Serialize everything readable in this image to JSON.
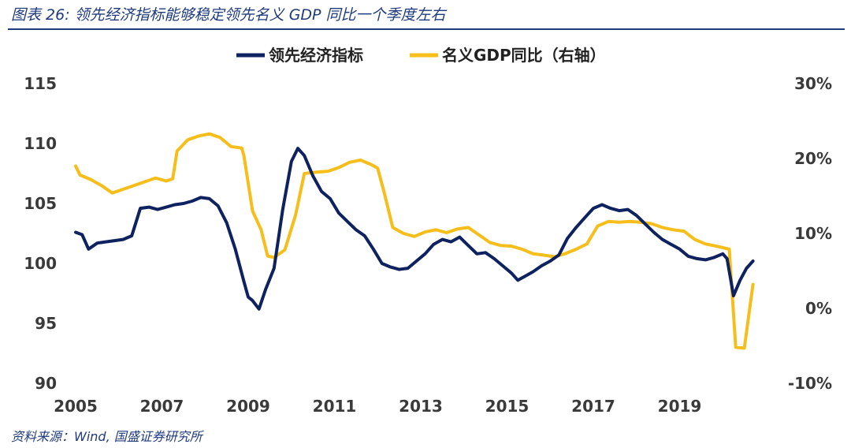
{
  "header": {
    "title": "图表 26:  领先经济指标能够稳定领先名义 GDP 同比一个季度左右"
  },
  "footer": {
    "source": "资料来源：Wind, 国盛证券研究所"
  },
  "colors": {
    "series1": "#0E2260",
    "series2": "#F5BE1B",
    "accent": "#1F3A7D"
  },
  "chart_data": {
    "type": "line",
    "title": "",
    "legend_position": "top-center",
    "grid": false,
    "x_ticks": [
      "2005",
      "2007",
      "2009",
      "2011",
      "2013",
      "2015",
      "2017",
      "2019"
    ],
    "xlim": [
      2005,
      2021
    ],
    "y_left": {
      "ticks": [
        "90",
        "95",
        "100",
        "105",
        "110",
        "115"
      ],
      "lim": [
        90,
        115
      ]
    },
    "y_right": {
      "ticks": [
        "-10%",
        "0%",
        "10%",
        "20%",
        "30%"
      ],
      "lim": [
        -10,
        30
      ]
    },
    "series": [
      {
        "name": "领先经济指标",
        "axis": "left",
        "x": [
          2005.0,
          2005.15,
          2005.3,
          2005.5,
          2005.7,
          2005.9,
          2006.1,
          2006.3,
          2006.5,
          2006.7,
          2006.9,
          2007.1,
          2007.3,
          2007.5,
          2007.7,
          2007.9,
          2008.1,
          2008.3,
          2008.5,
          2008.7,
          2008.9,
          2009.0,
          2009.1,
          2009.25,
          2009.4,
          2009.6,
          2009.8,
          2010.0,
          2010.15,
          2010.3,
          2010.5,
          2010.7,
          2010.9,
          2011.1,
          2011.3,
          2011.5,
          2011.7,
          2011.9,
          2012.1,
          2012.3,
          2012.5,
          2012.7,
          2012.9,
          2013.1,
          2013.3,
          2013.5,
          2013.7,
          2013.9,
          2014.1,
          2014.3,
          2014.5,
          2014.7,
          2014.9,
          2015.1,
          2015.25,
          2015.4,
          2015.6,
          2015.8,
          2016.0,
          2016.2,
          2016.4,
          2016.6,
          2016.8,
          2017.0,
          2017.2,
          2017.4,
          2017.6,
          2017.8,
          2018.0,
          2018.2,
          2018.4,
          2018.6,
          2018.8,
          2019.0,
          2019.2,
          2019.4,
          2019.6,
          2019.8,
          2020.0,
          2020.1,
          2020.25,
          2020.4,
          2020.55,
          2020.7
        ],
        "values": [
          102.6,
          102.4,
          101.2,
          101.7,
          101.8,
          101.9,
          102.0,
          102.3,
          104.6,
          104.7,
          104.5,
          104.7,
          104.9,
          105.0,
          105.2,
          105.5,
          105.4,
          104.8,
          103.4,
          101.2,
          98.5,
          97.2,
          96.9,
          96.2,
          97.8,
          99.6,
          104.5,
          108.5,
          109.6,
          109.0,
          107.3,
          106.0,
          105.4,
          104.2,
          103.5,
          102.8,
          102.3,
          101.2,
          100.0,
          99.7,
          99.5,
          99.6,
          100.2,
          100.8,
          101.6,
          102.0,
          101.8,
          102.2,
          101.5,
          100.8,
          100.9,
          100.4,
          99.8,
          99.2,
          98.6,
          98.9,
          99.3,
          99.8,
          100.2,
          100.7,
          102.1,
          103.0,
          103.8,
          104.6,
          104.9,
          104.6,
          104.4,
          104.5,
          104.0,
          103.3,
          102.6,
          102.0,
          101.6,
          101.2,
          100.6,
          100.4,
          100.3,
          100.5,
          100.8,
          100.4,
          97.3,
          98.6,
          99.6,
          100.2
        ]
      },
      {
        "name": "名义GDP同比（右轴）",
        "axis": "right",
        "x": [
          2005.0,
          2005.1,
          2005.35,
          2005.6,
          2005.85,
          2006.1,
          2006.35,
          2006.6,
          2006.85,
          2007.1,
          2007.25,
          2007.35,
          2007.6,
          2007.85,
          2008.1,
          2008.35,
          2008.6,
          2008.85,
          2008.9,
          2009.1,
          2009.3,
          2009.45,
          2009.6,
          2009.85,
          2010.1,
          2010.3,
          2010.6,
          2010.85,
          2011.1,
          2011.35,
          2011.6,
          2011.85,
          2012.0,
          2012.15,
          2012.35,
          2012.6,
          2012.85,
          2013.1,
          2013.35,
          2013.6,
          2013.85,
          2014.1,
          2014.35,
          2014.6,
          2014.85,
          2015.1,
          2015.35,
          2015.6,
          2015.85,
          2016.1,
          2016.35,
          2016.6,
          2016.85,
          2017.1,
          2017.35,
          2017.6,
          2017.85,
          2018.1,
          2018.35,
          2018.6,
          2018.85,
          2019.1,
          2019.35,
          2019.6,
          2019.85,
          2020.0,
          2020.15,
          2020.3,
          2020.5,
          2020.7
        ],
        "values": [
          19.0,
          17.8,
          17.2,
          16.4,
          15.4,
          15.9,
          16.4,
          16.9,
          17.4,
          17.0,
          17.3,
          21.0,
          22.5,
          23.0,
          23.3,
          22.8,
          21.6,
          21.4,
          20.4,
          13.0,
          10.5,
          7.0,
          6.8,
          7.8,
          12.5,
          18.0,
          18.2,
          18.3,
          18.8,
          19.5,
          19.8,
          19.2,
          18.7,
          15.5,
          10.8,
          10.0,
          9.6,
          10.2,
          10.5,
          10.1,
          10.6,
          10.8,
          9.8,
          8.8,
          8.4,
          8.3,
          7.9,
          7.3,
          7.1,
          6.9,
          7.3,
          7.9,
          8.6,
          11.0,
          11.6,
          11.5,
          11.6,
          11.5,
          11.3,
          10.8,
          10.5,
          10.3,
          9.2,
          8.6,
          8.3,
          8.1,
          7.9,
          -5.2,
          -5.3,
          3.2
        ]
      }
    ]
  }
}
